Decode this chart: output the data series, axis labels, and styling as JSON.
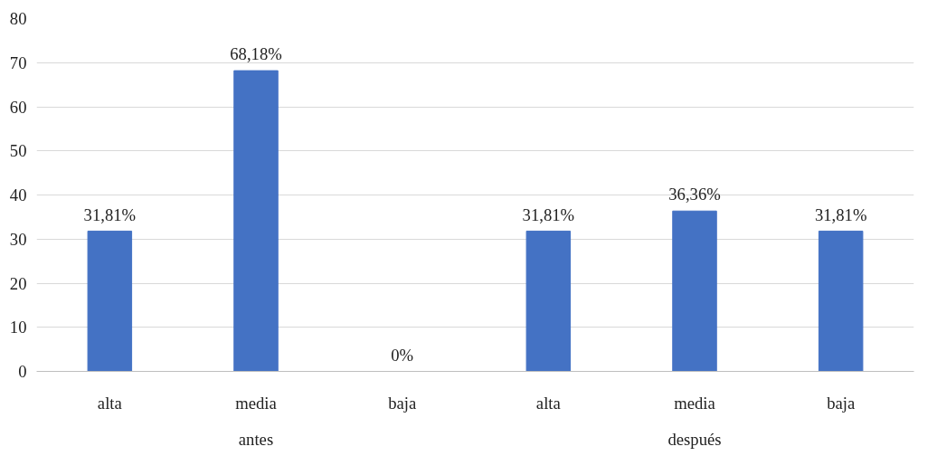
{
  "chart_data": {
    "type": "bar",
    "categories": [
      "alta",
      "media",
      "baja",
      "alta",
      "media",
      "baja"
    ],
    "values": [
      31.81,
      68.18,
      0,
      31.81,
      36.36,
      31.81
    ],
    "value_labels": [
      "31,81%",
      "68,18%",
      "0%",
      "31,81%",
      "36,36%",
      "31,81%"
    ],
    "color": "#4472c4",
    "ylim": [
      0,
      80
    ],
    "yticks": [
      0,
      10,
      20,
      30,
      40,
      50,
      60,
      70,
      80
    ],
    "grid": "y",
    "annotations": [
      "antes",
      "después"
    ]
  }
}
